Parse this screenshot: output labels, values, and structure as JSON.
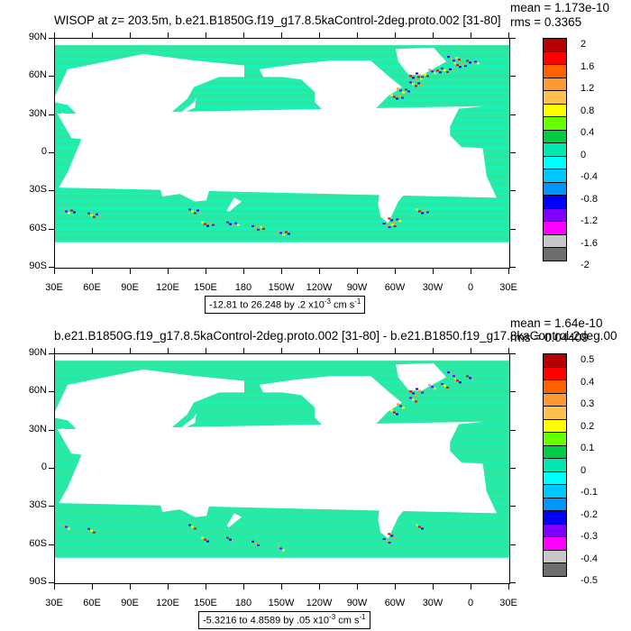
{
  "panels": [
    {
      "title": "WISOP at z= 203.5m, b.e21.B1850G.f19_g17.8.5kaControl-2deg.proto.002 [31-80]",
      "mean_text": "mean = 1.173e-10",
      "rms_text": "rms = 0.3365",
      "info_text": "-12.81 to 26.248 by .2 x10",
      "info_exp": "-3",
      "info_units": " cm s",
      "info_units_exp": "-1",
      "legend_labels": [
        "2",
        "1.6",
        "1.2",
        "0.8",
        "0.4",
        "0",
        "-0.4",
        "-0.8",
        "-1.2",
        "-1.6",
        "-2"
      ]
    },
    {
      "title": "b.e21.B1850G.f19_g17.8.5kaControl-2deg.proto.002 [31-80] - b.e21.B1850.f19_g17.8kaControl-2deg.00",
      "mean_text": "mean = 1.64e-10",
      "rms_text": "rms = 0.04409",
      "info_text": "-5.3216 to 4.8589 by .05 x10",
      "info_exp": "-3",
      "info_units": " cm s",
      "info_units_exp": "-1",
      "legend_labels": [
        "0.5",
        "0.4",
        "0.3",
        "0.2",
        "0.1",
        "0",
        "-0.1",
        "-0.2",
        "-0.3",
        "-0.4",
        "-0.5"
      ]
    }
  ],
  "y_axis_labels": [
    "90N",
    "60N",
    "30N",
    "0",
    "30S",
    "60S",
    "90S"
  ],
  "x_axis_labels": [
    "30E",
    "60E",
    "90E",
    "120E",
    "150E",
    "180",
    "150W",
    "120W",
    "90W",
    "60W",
    "30W",
    "0",
    "30E"
  ],
  "colorbar_colors": [
    "#b40000",
    "#ff0000",
    "#ff6000",
    "#ff9a33",
    "#ffc04d",
    "#ffff00",
    "#66ff00",
    "#00cc44",
    "#00e8b0",
    "#00ffff",
    "#00c8ff",
    "#0096ff",
    "#0000ff",
    "#8000ff",
    "#ff00ff",
    "#c8c8c8",
    "#6e6e6e"
  ],
  "colors": {
    "ocean_main": "#2ee6a0",
    "ocean_band": "#00ffcc",
    "land": "#ffffff",
    "anomaly_red": "#ff0000",
    "anomaly_blue": "#0000ff"
  }
}
